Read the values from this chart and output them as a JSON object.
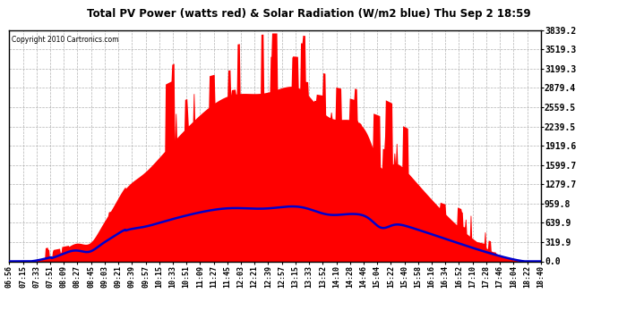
{
  "title": "Total PV Power (watts red) & Solar Radiation (W/m2 blue) Thu Sep 2 18:59",
  "copyright_text": "Copyright 2010 Cartronics.com",
  "bg_color": "#ffffff",
  "plot_bg_color": "#ffffff",
  "grid_color": "#aaaaaa",
  "red_color": "#ff0000",
  "blue_color": "#0000cc",
  "y_ticks": [
    0.0,
    319.9,
    639.9,
    959.8,
    1279.7,
    1599.7,
    1919.6,
    2239.5,
    2559.5,
    2879.4,
    3199.3,
    3519.3,
    3839.2
  ],
  "x_labels": [
    "06:56",
    "07:15",
    "07:33",
    "07:51",
    "08:09",
    "08:27",
    "08:45",
    "09:03",
    "09:21",
    "09:39",
    "09:57",
    "10:15",
    "10:33",
    "10:51",
    "11:09",
    "11:27",
    "11:45",
    "12:03",
    "12:21",
    "12:39",
    "12:57",
    "13:15",
    "13:33",
    "13:52",
    "14:10",
    "14:28",
    "14:46",
    "15:04",
    "15:22",
    "15:40",
    "15:58",
    "16:16",
    "16:34",
    "16:52",
    "17:10",
    "17:28",
    "17:46",
    "18:04",
    "18:22",
    "18:40"
  ],
  "ymax": 3839.2,
  "ymin": 0.0
}
